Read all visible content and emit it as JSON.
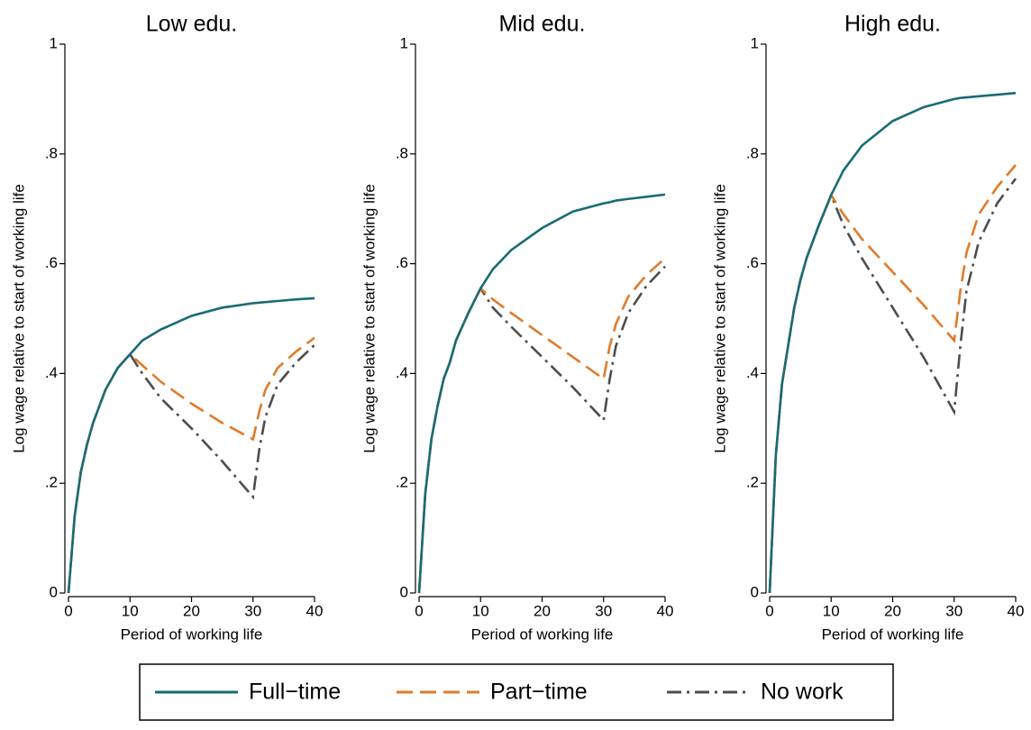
{
  "chart_data": [
    {
      "type": "line",
      "title": "Low edu.",
      "xlabel": "Period of working life",
      "ylabel": "Log wage relative to start of working life",
      "x": [
        0,
        1,
        2,
        3,
        4,
        5,
        6,
        8,
        10,
        12,
        15,
        20,
        25,
        30,
        31,
        32,
        34,
        37,
        40
      ],
      "series": [
        {
          "name": "Full−time",
          "color": "#1a6b73",
          "values": [
            0,
            0.14,
            0.22,
            0.27,
            0.31,
            0.34,
            0.37,
            0.41,
            0.435,
            0.46,
            0.48,
            0.505,
            0.52,
            0.528,
            0.529,
            0.53,
            0.532,
            0.535,
            0.537
          ]
        },
        {
          "name": "Part−time",
          "color": "#e07b2a",
          "values": [
            0,
            0.14,
            0.22,
            0.27,
            0.31,
            0.34,
            0.37,
            0.41,
            0.435,
            0.415,
            0.385,
            0.345,
            0.31,
            0.28,
            0.33,
            0.37,
            0.41,
            0.44,
            0.465
          ]
        },
        {
          "name": "No work",
          "color": "#4d4d4d",
          "values": [
            0,
            0.14,
            0.22,
            0.27,
            0.31,
            0.34,
            0.37,
            0.41,
            0.435,
            0.4,
            0.355,
            0.3,
            0.24,
            0.175,
            0.26,
            0.32,
            0.38,
            0.42,
            0.452
          ]
        }
      ],
      "xlim": [
        0,
        40
      ],
      "xticks": [
        0,
        10,
        20,
        30,
        40
      ],
      "ylim": [
        0,
        1
      ],
      "yticks": [
        0,
        {
          "value": 0.2,
          "label": ".2"
        },
        {
          "value": 0.4,
          "label": ".4"
        },
        {
          "value": 0.6,
          "label": ".6"
        },
        {
          "value": 0.8,
          "label": ".8"
        },
        1
      ]
    },
    {
      "type": "line",
      "title": "Mid edu.",
      "xlabel": "Period of working life",
      "ylabel": "Log wage relative to start of working life",
      "x": [
        0,
        1,
        2,
        3,
        4,
        5,
        6,
        8,
        10,
        12,
        15,
        20,
        25,
        30,
        31,
        32,
        34,
        37,
        40
      ],
      "series": [
        {
          "name": "Full−time",
          "color": "#1a6b73",
          "values": [
            0,
            0.18,
            0.28,
            0.34,
            0.39,
            0.42,
            0.46,
            0.51,
            0.555,
            0.59,
            0.625,
            0.665,
            0.695,
            0.71,
            0.712,
            0.715,
            0.718,
            0.722,
            0.726
          ]
        },
        {
          "name": "Part−time",
          "color": "#e07b2a",
          "values": [
            0,
            0.18,
            0.28,
            0.34,
            0.39,
            0.42,
            0.46,
            0.51,
            0.555,
            0.535,
            0.51,
            0.47,
            0.43,
            0.39,
            0.45,
            0.49,
            0.54,
            0.58,
            0.61
          ]
        },
        {
          "name": "No work",
          "color": "#4d4d4d",
          "values": [
            0,
            0.18,
            0.28,
            0.34,
            0.39,
            0.42,
            0.46,
            0.51,
            0.555,
            0.52,
            0.485,
            0.43,
            0.375,
            0.315,
            0.39,
            0.45,
            0.51,
            0.56,
            0.595
          ]
        }
      ],
      "xlim": [
        0,
        40
      ],
      "xticks": [
        0,
        10,
        20,
        30,
        40
      ],
      "ylim": [
        0,
        1
      ],
      "yticks": [
        0,
        {
          "value": 0.2,
          "label": ".2"
        },
        {
          "value": 0.4,
          "label": ".4"
        },
        {
          "value": 0.6,
          "label": ".6"
        },
        {
          "value": 0.8,
          "label": ".8"
        },
        1
      ]
    },
    {
      "type": "line",
      "title": "High edu.",
      "xlabel": "Period of working life",
      "ylabel": "Log wage relative to start of working life",
      "x": [
        0,
        1,
        2,
        3,
        4,
        5,
        6,
        8,
        10,
        12,
        15,
        20,
        25,
        30,
        31,
        32,
        34,
        37,
        40
      ],
      "series": [
        {
          "name": "Full−time",
          "color": "#1a6b73",
          "values": [
            0,
            0.25,
            0.38,
            0.45,
            0.52,
            0.57,
            0.61,
            0.67,
            0.725,
            0.77,
            0.815,
            0.86,
            0.885,
            0.9,
            0.902,
            0.903,
            0.905,
            0.908,
            0.911
          ]
        },
        {
          "name": "Part−time",
          "color": "#e07b2a",
          "values": [
            0,
            0.25,
            0.38,
            0.45,
            0.52,
            0.57,
            0.61,
            0.67,
            0.725,
            0.69,
            0.645,
            0.585,
            0.525,
            0.46,
            0.55,
            0.62,
            0.69,
            0.74,
            0.78
          ]
        },
        {
          "name": "No work",
          "color": "#4d4d4d",
          "values": [
            0,
            0.25,
            0.38,
            0.45,
            0.52,
            0.57,
            0.61,
            0.67,
            0.725,
            0.67,
            0.61,
            0.52,
            0.43,
            0.33,
            0.45,
            0.55,
            0.64,
            0.71,
            0.755
          ]
        }
      ],
      "xlim": [
        0,
        40
      ],
      "xticks": [
        0,
        10,
        20,
        30,
        40
      ],
      "ylim": [
        0,
        1
      ],
      "yticks": [
        0,
        {
          "value": 0.2,
          "label": ".2"
        },
        {
          "value": 0.4,
          "label": ".4"
        },
        {
          "value": 0.6,
          "label": ".6"
        },
        {
          "value": 0.8,
          "label": ".8"
        },
        1
      ]
    }
  ]
}
